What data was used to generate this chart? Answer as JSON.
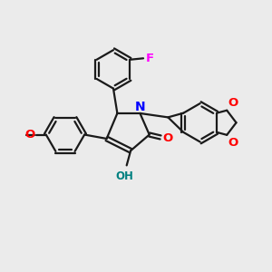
{
  "bg_color": "#ebebeb",
  "bond_color": "#1a1a1a",
  "N_color": "#0000ff",
  "O_color": "#ff0000",
  "F_color": "#ff00ff",
  "OH_color": "#008080",
  "line_width": 1.6,
  "figsize": [
    3.0,
    3.0
  ],
  "dpi": 100,
  "xlim": [
    0,
    10
  ],
  "ylim": [
    0,
    10
  ]
}
